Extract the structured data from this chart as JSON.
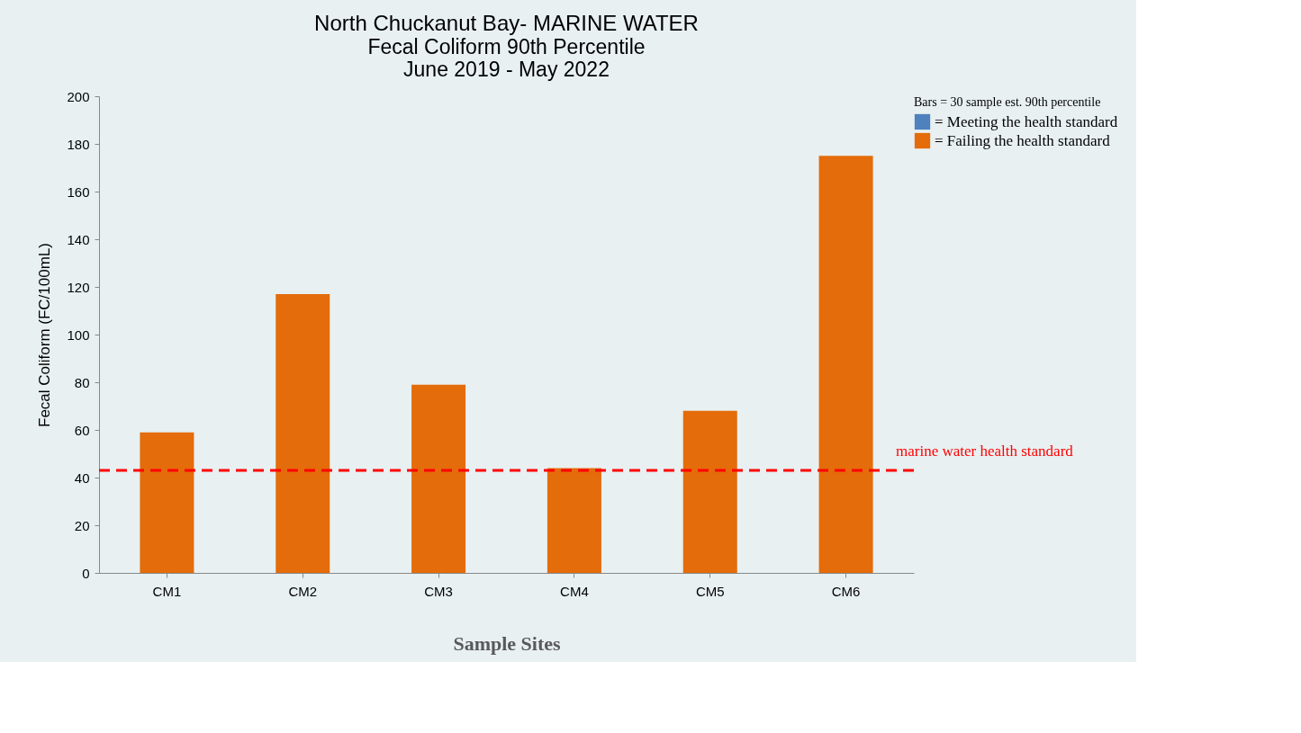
{
  "chart_data": {
    "type": "bar",
    "title": "North Chuckanut Bay- MARINE WATER",
    "subtitle": "Fecal Coliform 90th Percentile\nJune 2019 - May 2022",
    "xlabel": "Sample Sites",
    "ylabel": "Fecal Coliform (FC/100mL)",
    "categories": [
      "CM1",
      "CM2",
      "CM3",
      "CM4",
      "CM5",
      "CM6"
    ],
    "series": [
      {
        "name": "= Meeting the health standard",
        "color": "#4f81bd",
        "values": [
          null,
          null,
          null,
          null,
          null,
          null
        ]
      },
      {
        "name": "= Failing the health standard",
        "color": "#e46c0a",
        "values": [
          59,
          117,
          79,
          44,
          68,
          175
        ]
      }
    ],
    "legend_title": "Bars = 30 sample est. 90th percentile",
    "legend": "right",
    "ylim": [
      0,
      200
    ],
    "yticks": [
      0,
      20,
      40,
      60,
      80,
      100,
      120,
      140,
      160,
      180,
      200
    ],
    "grid": false,
    "ref_lines": [
      {
        "axis": "y",
        "value": 43,
        "label": "marine water health standard",
        "color": "#ff0000",
        "line_style": "dashed"
      }
    ]
  }
}
